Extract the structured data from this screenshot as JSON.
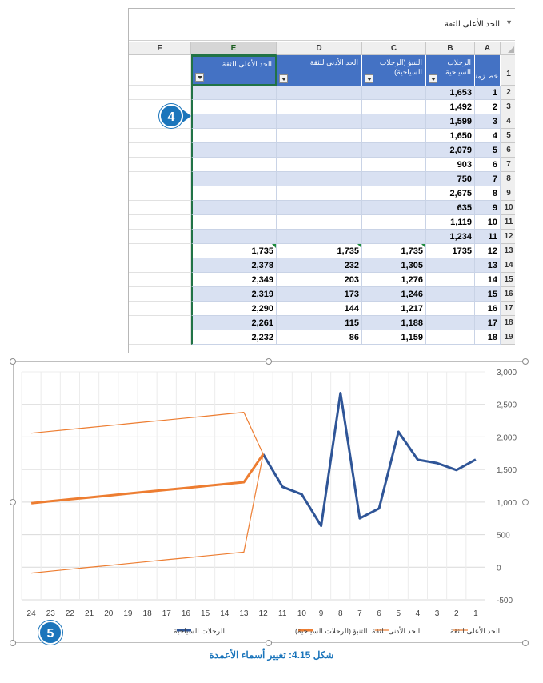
{
  "namebox": {
    "label": "الحد الأعلى للثقة"
  },
  "columns": [
    "F",
    "E",
    "D",
    "C",
    "B",
    "A"
  ],
  "headers": {
    "E": "الحد الأعلى للثقة",
    "D": "الحد الأدنى للثقة",
    "C": "التنبؤ (الرحلات السياحية)",
    "B": "الرحلات السياحية",
    "A": "خط زمني"
  },
  "rows": [
    {
      "n": "2",
      "a": "1",
      "b": "1,653",
      "c": "",
      "d": "",
      "e": ""
    },
    {
      "n": "3",
      "a": "2",
      "b": "1,492",
      "c": "",
      "d": "",
      "e": ""
    },
    {
      "n": "4",
      "a": "3",
      "b": "1,599",
      "c": "",
      "d": "",
      "e": ""
    },
    {
      "n": "5",
      "a": "4",
      "b": "1,650",
      "c": "",
      "d": "",
      "e": ""
    },
    {
      "n": "6",
      "a": "5",
      "b": "2,079",
      "c": "",
      "d": "",
      "e": ""
    },
    {
      "n": "7",
      "a": "6",
      "b": "903",
      "c": "",
      "d": "",
      "e": ""
    },
    {
      "n": "8",
      "a": "7",
      "b": "750",
      "c": "",
      "d": "",
      "e": ""
    },
    {
      "n": "9",
      "a": "8",
      "b": "2,675",
      "c": "",
      "d": "",
      "e": ""
    },
    {
      "n": "10",
      "a": "9",
      "b": "635",
      "c": "",
      "d": "",
      "e": ""
    },
    {
      "n": "11",
      "a": "10",
      "b": "1,119",
      "c": "",
      "d": "",
      "e": ""
    },
    {
      "n": "12",
      "a": "11",
      "b": "1,234",
      "c": "",
      "d": "",
      "e": ""
    },
    {
      "n": "13",
      "a": "12",
      "b": "1735",
      "c": "1,735",
      "d": "1,735",
      "e": "1,735"
    },
    {
      "n": "14",
      "a": "13",
      "b": "",
      "c": "1,305",
      "d": "232",
      "e": "2,378"
    },
    {
      "n": "15",
      "a": "14",
      "b": "",
      "c": "1,276",
      "d": "203",
      "e": "2,349"
    },
    {
      "n": "16",
      "a": "15",
      "b": "",
      "c": "1,246",
      "d": "173",
      "e": "2,319"
    },
    {
      "n": "17",
      "a": "16",
      "b": "",
      "c": "1,217",
      "d": "144",
      "e": "2,290"
    },
    {
      "n": "18",
      "a": "17",
      "b": "",
      "c": "1,188",
      "d": "115",
      "e": "2,261"
    },
    {
      "n": "19",
      "a": "18",
      "b": "",
      "c": "1,159",
      "d": "86",
      "e": "2,232"
    }
  ],
  "callouts": {
    "first": "4",
    "second": "5"
  },
  "caption": "شكل 4.15: تغيير أسماء الأعمدة",
  "chart_data": {
    "type": "line",
    "x": [
      1,
      2,
      3,
      4,
      5,
      6,
      7,
      8,
      9,
      10,
      11,
      12,
      13,
      14,
      15,
      16,
      17,
      18,
      19,
      20,
      21,
      22,
      23,
      24
    ],
    "x_reversed": true,
    "y_axis_side": "right",
    "ylim": [
      -500,
      3000
    ],
    "yticks": [
      "-500",
      "0",
      "500",
      "1,000",
      "1,500",
      "2,000",
      "2,500",
      "3,000"
    ],
    "ytick_values": [
      -500,
      0,
      500,
      1000,
      1500,
      2000,
      2500,
      3000
    ],
    "grid": true,
    "legend_position": "bottom",
    "series": [
      {
        "name": "الرحلات السياحية",
        "color": "#2f5597",
        "width": 3,
        "x": [
          1,
          2,
          3,
          4,
          5,
          6,
          7,
          8,
          9,
          10,
          11,
          12
        ],
        "values": [
          1653,
          1492,
          1599,
          1650,
          2079,
          903,
          750,
          2675,
          635,
          1119,
          1234,
          1735
        ]
      },
      {
        "name": "التنبؤ (الرحلات السياحية)",
        "color": "#ed7d31",
        "width": 3,
        "x": [
          12,
          13,
          14,
          15,
          16,
          17,
          18,
          19,
          20,
          21,
          22,
          23,
          24
        ],
        "values": [
          1735,
          1305,
          1276,
          1246,
          1217,
          1188,
          1159,
          1130,
          1100,
          1071,
          1042,
          1013,
          983
        ]
      },
      {
        "name": "الحد الأدنى للثقة",
        "color": "#ed7d31",
        "width": 1.2,
        "x": [
          12,
          13,
          14,
          15,
          16,
          17,
          18,
          19,
          20,
          21,
          22,
          23,
          24
        ],
        "values": [
          1735,
          232,
          203,
          173,
          144,
          115,
          86,
          56,
          27,
          -2,
          -31,
          -60,
          -90
        ]
      },
      {
        "name": "الحد الأعلى للثقة",
        "color": "#ed7d31",
        "width": 1.2,
        "x": [
          12,
          13,
          14,
          15,
          16,
          17,
          18,
          19,
          20,
          21,
          22,
          23,
          24
        ],
        "values": [
          1735,
          2378,
          2349,
          2319,
          2290,
          2261,
          2232,
          2203,
          2174,
          2145,
          2116,
          2087,
          2058
        ]
      }
    ]
  }
}
